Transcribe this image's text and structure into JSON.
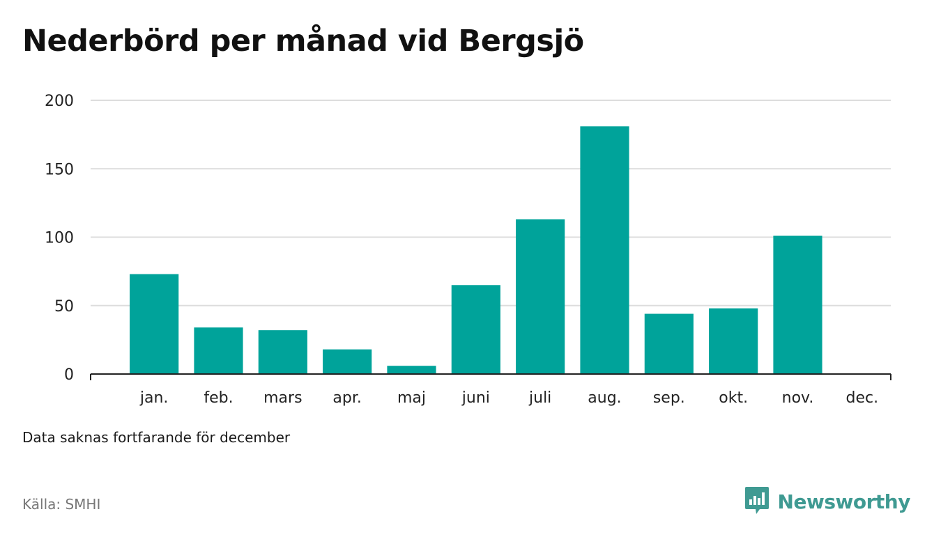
{
  "title": "Nederbörd per månad vid Bergsjö",
  "note": "Data saknas fortfarande för december",
  "source": "Källa: SMHI",
  "brand": {
    "name": "Newsworthy",
    "icon": "newsworthy-logo-icon",
    "color": "#3f9a92"
  },
  "colors": {
    "bar": "#00a39a",
    "grid": "#dddddd",
    "axis": "#222222"
  },
  "chart_data": {
    "type": "bar",
    "title": "Nederbörd per månad vid Bergsjö",
    "xlabel": "",
    "ylabel": "",
    "categories": [
      "jan.",
      "feb.",
      "mars",
      "apr.",
      "maj",
      "juni",
      "juli",
      "aug.",
      "sep.",
      "okt.",
      "nov.",
      "dec."
    ],
    "values": [
      73,
      34,
      32,
      18,
      6,
      65,
      113,
      181,
      44,
      48,
      101,
      null
    ],
    "ylim": [
      0,
      200
    ],
    "yticks": [
      0,
      50,
      100,
      150,
      200
    ],
    "grid": true
  }
}
